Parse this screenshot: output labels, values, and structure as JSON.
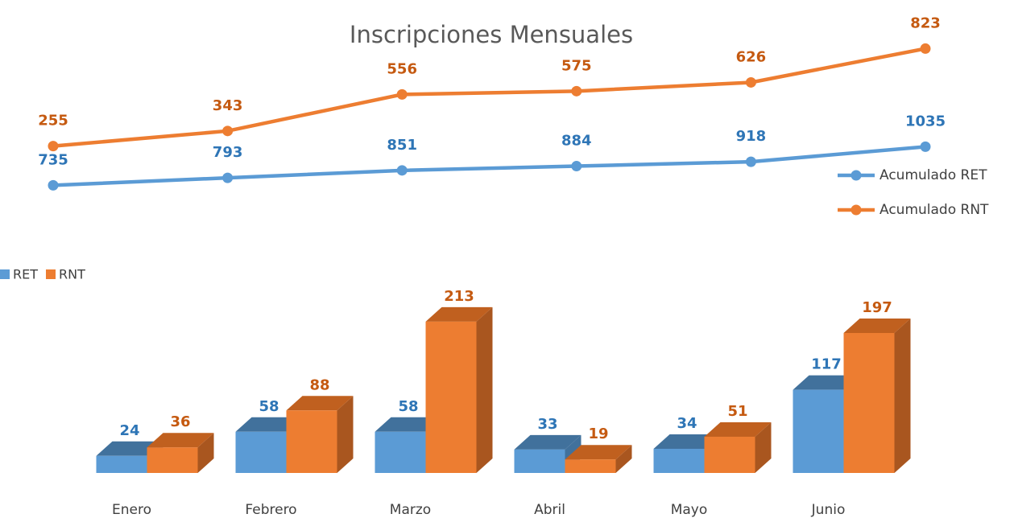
{
  "chart_data": [
    {
      "type": "line",
      "title": "Inscripciones Mensuales",
      "series": [
        {
          "name": "Acumulado RET",
          "color": "#5b9bd5",
          "label_color": "#2e75b6",
          "axis": "y",
          "values": [
            735,
            793,
            851,
            884,
            918,
            1035
          ]
        },
        {
          "name": "Acumulado RNT",
          "color": "#ed7d31",
          "label_color": "#c55a11",
          "axis": "y2",
          "values": [
            255,
            343,
            556,
            575,
            626,
            823
          ]
        }
      ],
      "ylim": [
        700,
        1900
      ],
      "y2lim": [
        0,
        900
      ],
      "legend": "right"
    },
    {
      "type": "bar3d",
      "categories": [
        "Enero",
        "Febrero",
        "Marzo",
        "Abril",
        "Mayo",
        "Junio"
      ],
      "series": [
        {
          "name": "RET",
          "color": "#5b9bd5",
          "top_color": "#41719c",
          "side_color": "#41719c",
          "label_color": "#2e75b6",
          "values": [
            24,
            58,
            58,
            33,
            34,
            117
          ]
        },
        {
          "name": "RNT",
          "color": "#ed7d31",
          "top_color": "#c0601f",
          "side_color": "#a9561f",
          "label_color": "#c55a11",
          "values": [
            36,
            88,
            213,
            19,
            51,
            197
          ]
        }
      ],
      "ylim": [
        0,
        240
      ],
      "legend": "top-left"
    }
  ]
}
